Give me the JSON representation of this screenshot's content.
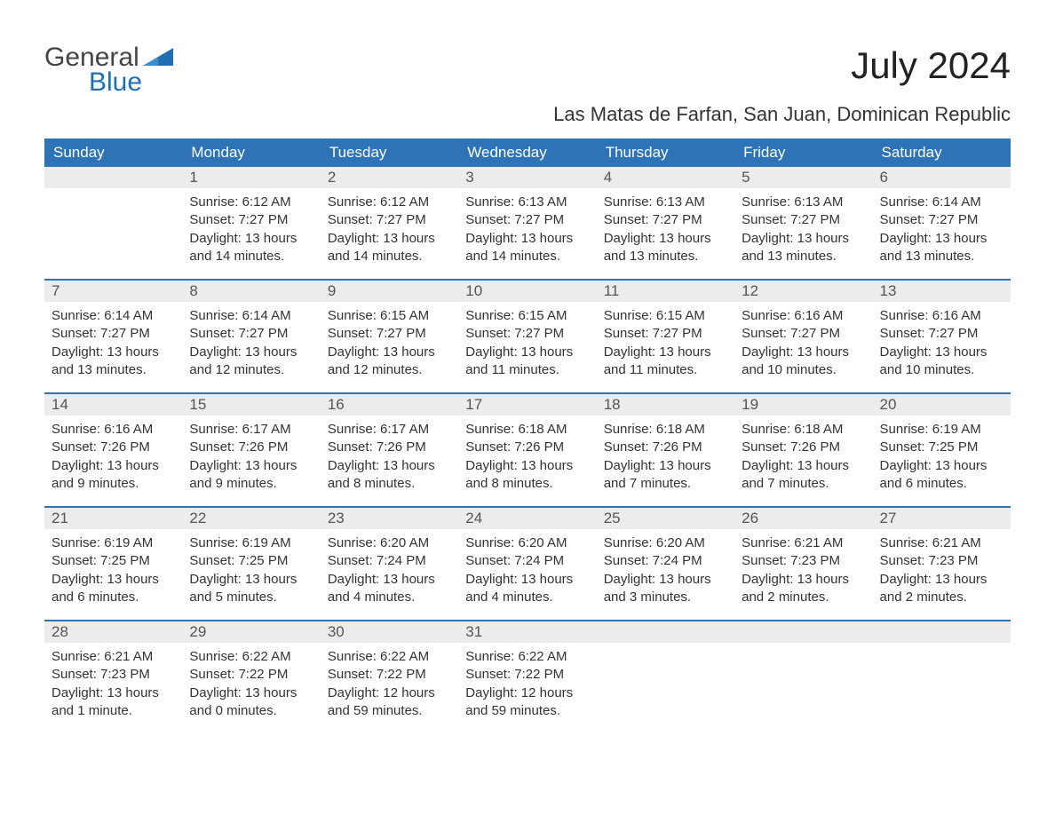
{
  "logo": {
    "word1": "General",
    "word2": "Blue"
  },
  "title": "July 2024",
  "location": "Las Matas de Farfan, San Juan, Dominican Republic",
  "colors": {
    "header_bg": "#2d73b6",
    "header_text": "#ffffff",
    "daynum_bg": "#ececec",
    "daynum_text": "#555555",
    "body_text": "#333333",
    "rule": "#2d73b6",
    "logo_gray": "#444444",
    "logo_blue": "#1f6fb2"
  },
  "dow": [
    "Sunday",
    "Monday",
    "Tuesday",
    "Wednesday",
    "Thursday",
    "Friday",
    "Saturday"
  ],
  "weeks": [
    [
      {
        "n": "",
        "sunrise": "",
        "sunset": "",
        "daylight": ""
      },
      {
        "n": "1",
        "sunrise": "Sunrise: 6:12 AM",
        "sunset": "Sunset: 7:27 PM",
        "daylight": "Daylight: 13 hours and 14 minutes."
      },
      {
        "n": "2",
        "sunrise": "Sunrise: 6:12 AM",
        "sunset": "Sunset: 7:27 PM",
        "daylight": "Daylight: 13 hours and 14 minutes."
      },
      {
        "n": "3",
        "sunrise": "Sunrise: 6:13 AM",
        "sunset": "Sunset: 7:27 PM",
        "daylight": "Daylight: 13 hours and 14 minutes."
      },
      {
        "n": "4",
        "sunrise": "Sunrise: 6:13 AM",
        "sunset": "Sunset: 7:27 PM",
        "daylight": "Daylight: 13 hours and 13 minutes."
      },
      {
        "n": "5",
        "sunrise": "Sunrise: 6:13 AM",
        "sunset": "Sunset: 7:27 PM",
        "daylight": "Daylight: 13 hours and 13 minutes."
      },
      {
        "n": "6",
        "sunrise": "Sunrise: 6:14 AM",
        "sunset": "Sunset: 7:27 PM",
        "daylight": "Daylight: 13 hours and 13 minutes."
      }
    ],
    [
      {
        "n": "7",
        "sunrise": "Sunrise: 6:14 AM",
        "sunset": "Sunset: 7:27 PM",
        "daylight": "Daylight: 13 hours and 13 minutes."
      },
      {
        "n": "8",
        "sunrise": "Sunrise: 6:14 AM",
        "sunset": "Sunset: 7:27 PM",
        "daylight": "Daylight: 13 hours and 12 minutes."
      },
      {
        "n": "9",
        "sunrise": "Sunrise: 6:15 AM",
        "sunset": "Sunset: 7:27 PM",
        "daylight": "Daylight: 13 hours and 12 minutes."
      },
      {
        "n": "10",
        "sunrise": "Sunrise: 6:15 AM",
        "sunset": "Sunset: 7:27 PM",
        "daylight": "Daylight: 13 hours and 11 minutes."
      },
      {
        "n": "11",
        "sunrise": "Sunrise: 6:15 AM",
        "sunset": "Sunset: 7:27 PM",
        "daylight": "Daylight: 13 hours and 11 minutes."
      },
      {
        "n": "12",
        "sunrise": "Sunrise: 6:16 AM",
        "sunset": "Sunset: 7:27 PM",
        "daylight": "Daylight: 13 hours and 10 minutes."
      },
      {
        "n": "13",
        "sunrise": "Sunrise: 6:16 AM",
        "sunset": "Sunset: 7:27 PM",
        "daylight": "Daylight: 13 hours and 10 minutes."
      }
    ],
    [
      {
        "n": "14",
        "sunrise": "Sunrise: 6:16 AM",
        "sunset": "Sunset: 7:26 PM",
        "daylight": "Daylight: 13 hours and 9 minutes."
      },
      {
        "n": "15",
        "sunrise": "Sunrise: 6:17 AM",
        "sunset": "Sunset: 7:26 PM",
        "daylight": "Daylight: 13 hours and 9 minutes."
      },
      {
        "n": "16",
        "sunrise": "Sunrise: 6:17 AM",
        "sunset": "Sunset: 7:26 PM",
        "daylight": "Daylight: 13 hours and 8 minutes."
      },
      {
        "n": "17",
        "sunrise": "Sunrise: 6:18 AM",
        "sunset": "Sunset: 7:26 PM",
        "daylight": "Daylight: 13 hours and 8 minutes."
      },
      {
        "n": "18",
        "sunrise": "Sunrise: 6:18 AM",
        "sunset": "Sunset: 7:26 PM",
        "daylight": "Daylight: 13 hours and 7 minutes."
      },
      {
        "n": "19",
        "sunrise": "Sunrise: 6:18 AM",
        "sunset": "Sunset: 7:26 PM",
        "daylight": "Daylight: 13 hours and 7 minutes."
      },
      {
        "n": "20",
        "sunrise": "Sunrise: 6:19 AM",
        "sunset": "Sunset: 7:25 PM",
        "daylight": "Daylight: 13 hours and 6 minutes."
      }
    ],
    [
      {
        "n": "21",
        "sunrise": "Sunrise: 6:19 AM",
        "sunset": "Sunset: 7:25 PM",
        "daylight": "Daylight: 13 hours and 6 minutes."
      },
      {
        "n": "22",
        "sunrise": "Sunrise: 6:19 AM",
        "sunset": "Sunset: 7:25 PM",
        "daylight": "Daylight: 13 hours and 5 minutes."
      },
      {
        "n": "23",
        "sunrise": "Sunrise: 6:20 AM",
        "sunset": "Sunset: 7:24 PM",
        "daylight": "Daylight: 13 hours and 4 minutes."
      },
      {
        "n": "24",
        "sunrise": "Sunrise: 6:20 AM",
        "sunset": "Sunset: 7:24 PM",
        "daylight": "Daylight: 13 hours and 4 minutes."
      },
      {
        "n": "25",
        "sunrise": "Sunrise: 6:20 AM",
        "sunset": "Sunset: 7:24 PM",
        "daylight": "Daylight: 13 hours and 3 minutes."
      },
      {
        "n": "26",
        "sunrise": "Sunrise: 6:21 AM",
        "sunset": "Sunset: 7:23 PM",
        "daylight": "Daylight: 13 hours and 2 minutes."
      },
      {
        "n": "27",
        "sunrise": "Sunrise: 6:21 AM",
        "sunset": "Sunset: 7:23 PM",
        "daylight": "Daylight: 13 hours and 2 minutes."
      }
    ],
    [
      {
        "n": "28",
        "sunrise": "Sunrise: 6:21 AM",
        "sunset": "Sunset: 7:23 PM",
        "daylight": "Daylight: 13 hours and 1 minute."
      },
      {
        "n": "29",
        "sunrise": "Sunrise: 6:22 AM",
        "sunset": "Sunset: 7:22 PM",
        "daylight": "Daylight: 13 hours and 0 minutes."
      },
      {
        "n": "30",
        "sunrise": "Sunrise: 6:22 AM",
        "sunset": "Sunset: 7:22 PM",
        "daylight": "Daylight: 12 hours and 59 minutes."
      },
      {
        "n": "31",
        "sunrise": "Sunrise: 6:22 AM",
        "sunset": "Sunset: 7:22 PM",
        "daylight": "Daylight: 12 hours and 59 minutes."
      },
      {
        "n": "",
        "sunrise": "",
        "sunset": "",
        "daylight": ""
      },
      {
        "n": "",
        "sunrise": "",
        "sunset": "",
        "daylight": ""
      },
      {
        "n": "",
        "sunrise": "",
        "sunset": "",
        "daylight": ""
      }
    ]
  ]
}
